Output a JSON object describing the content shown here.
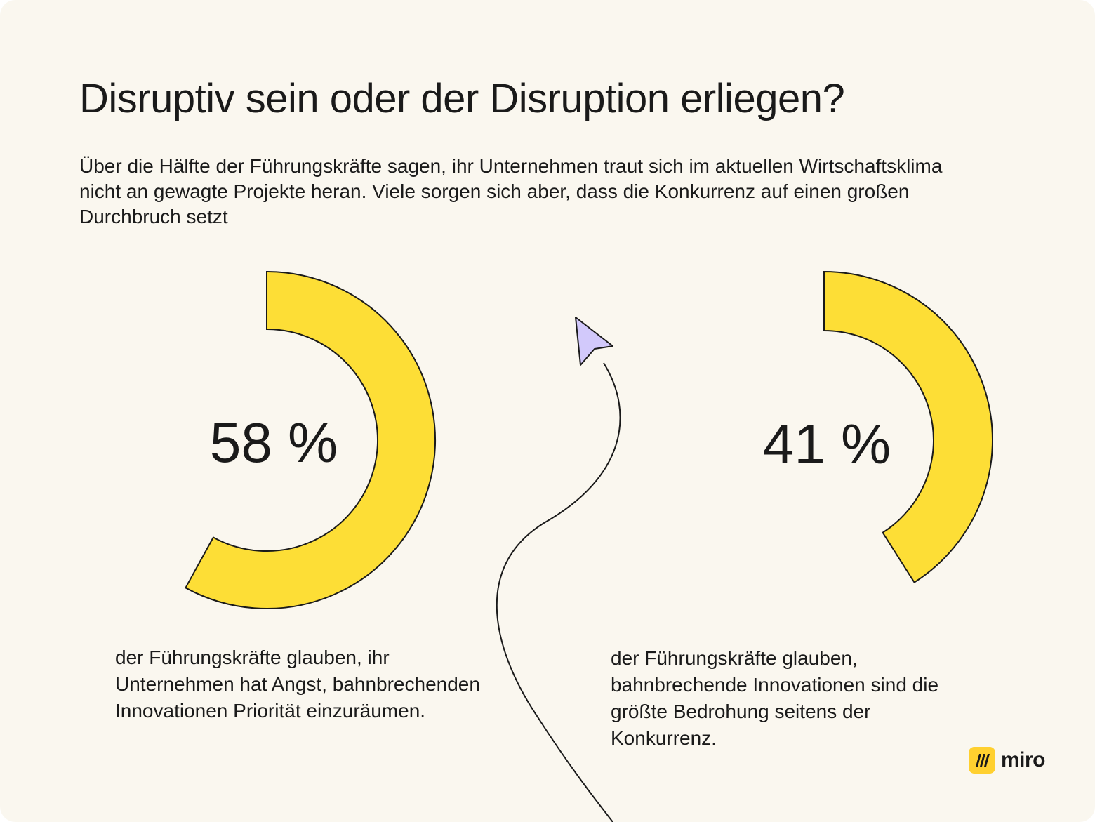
{
  "title": "Disruptiv sein oder der Disruption erliegen?",
  "subtitle": "Über die Hälfte der Führungskräfte sagen, ihr Unternehmen traut sich im aktuellen Wirtschaftsklima nicht an gewagte Projekte heran. Viele sorgen sich aber, dass die Konkurrenz auf einen großen Durchbruch setzt",
  "colors": {
    "ring": "#fdde36",
    "stroke": "#1a1a1a",
    "background": "#faf7ef",
    "cursor": "#d2c9fb"
  },
  "chart_data": [
    {
      "type": "pie",
      "value": 58,
      "label": "58 %",
      "caption": "der Führungskräfte glauben, ihr Unternehmen hat Angst, bahnbrechenden Innovationen Priorität einzuräumen."
    },
    {
      "type": "pie",
      "value": 41,
      "label": "41 %",
      "caption": "der Führungskräfte glauben, bahnbrechende Innovationen sind die größte Bedrohung seitens der Konkurrenz."
    }
  ],
  "logo": {
    "text": "miro",
    "icon": "miro-logo-icon"
  }
}
